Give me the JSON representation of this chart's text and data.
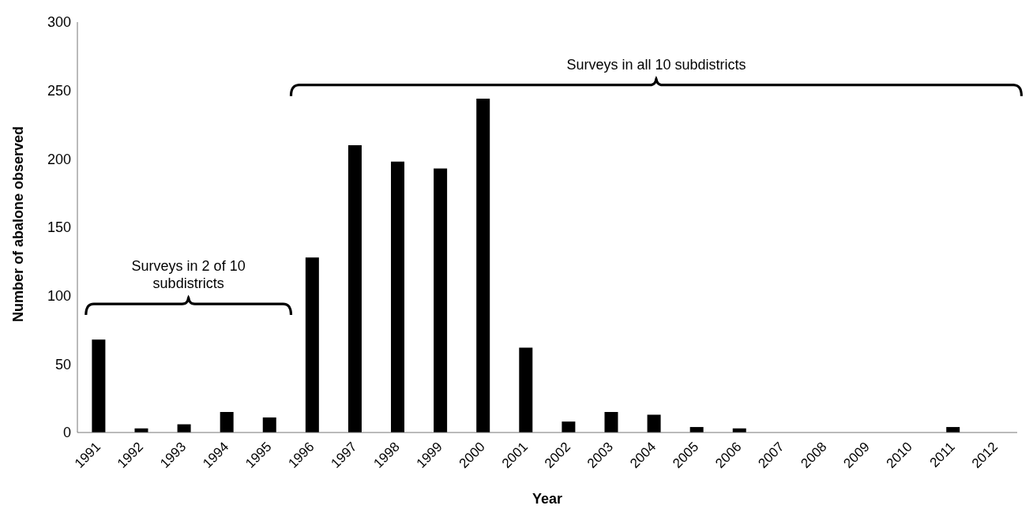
{
  "chart_data": {
    "type": "bar",
    "xlabel": "Year",
    "ylabel": "Number of abalone observed",
    "categories": [
      "1991",
      "1992",
      "1993",
      "1994",
      "1995",
      "1996",
      "1997",
      "1998",
      "1999",
      "2000",
      "2001",
      "2002",
      "2003",
      "2004",
      "2005",
      "2006",
      "2007",
      "2008",
      "2009",
      "2010",
      "2011",
      "2012"
    ],
    "values": [
      68,
      3,
      6,
      15,
      11,
      128,
      210,
      198,
      193,
      244,
      62,
      8,
      15,
      13,
      4,
      3,
      0,
      0,
      0,
      0,
      4,
      0
    ],
    "color": "#000000",
    "ylim": [
      0,
      300
    ],
    "yticks": [
      0,
      50,
      100,
      150,
      200,
      250,
      300
    ],
    "grid": false,
    "annotations": [
      "Surveys in 2 of 10 subdistricts",
      "Surveys in all 10 subdistricts"
    ]
  }
}
